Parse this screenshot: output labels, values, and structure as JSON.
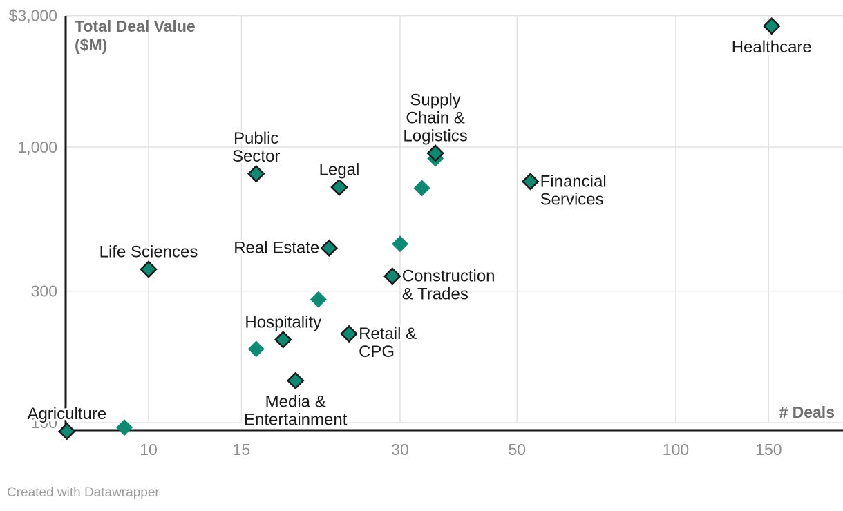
{
  "chart_data": {
    "type": "scatter",
    "title": "",
    "x_axis": {
      "title": "# Deals",
      "scale": "log",
      "min": 7,
      "max": 200,
      "ticks": [
        {
          "value": 10,
          "label": "10"
        },
        {
          "value": 15,
          "label": "15"
        },
        {
          "value": 30,
          "label": "30"
        },
        {
          "value": 50,
          "label": "50"
        },
        {
          "value": 100,
          "label": "100"
        },
        {
          "value": 150,
          "label": "150"
        }
      ]
    },
    "y_axis": {
      "title_lines": [
        "Total Deal Value",
        "($M)"
      ],
      "scale": "log",
      "min": 93,
      "max": 3000,
      "ticks": [
        {
          "value": 3000,
          "label": "$3,000"
        },
        {
          "value": 1000,
          "label": "1,000"
        },
        {
          "value": 300,
          "label": "300"
        },
        {
          "value": 100,
          "label": "100"
        }
      ]
    },
    "grid": true,
    "legend": "none",
    "marker": {
      "shape": "diamond",
      "fill": "#0e8a72",
      "labeled_stroke": "#1a1a1a"
    },
    "series": [
      {
        "name": "Industries",
        "points": [
          {
            "name": "Healthcare",
            "deals": 152,
            "total_deal_value_m": 2750,
            "labeled": true,
            "label_lines": [
              "Healthcare"
            ],
            "label_pos": "bottom"
          },
          {
            "name": "Supply Chain & Logistics",
            "deals": 35,
            "total_deal_value_m": 950,
            "labeled": true,
            "label_lines": [
              "Supply",
              "Chain &",
              "Logistics"
            ],
            "label_pos": "top"
          },
          {
            "name": "Public Sector",
            "deals": 16,
            "total_deal_value_m": 800,
            "labeled": true,
            "label_lines": [
              "Public",
              "Sector"
            ],
            "label_pos": "top"
          },
          {
            "name": "Financial Services",
            "deals": 53,
            "total_deal_value_m": 750,
            "labeled": true,
            "label_lines": [
              "Financial",
              "Services"
            ],
            "label_pos": "right"
          },
          {
            "name": "Legal",
            "deals": 23,
            "total_deal_value_m": 715,
            "labeled": true,
            "label_lines": [
              "Legal"
            ],
            "label_pos": "top"
          },
          {
            "name": "Real Estate",
            "deals": 22,
            "total_deal_value_m": 430,
            "labeled": true,
            "label_lines": [
              "Real Estate"
            ],
            "label_pos": "left"
          },
          {
            "name": "Life Sciences",
            "deals": 10,
            "total_deal_value_m": 360,
            "labeled": true,
            "label_lines": [
              "Life Sciences"
            ],
            "label_pos": "top"
          },
          {
            "name": "Construction & Trades",
            "deals": 29,
            "total_deal_value_m": 340,
            "labeled": true,
            "label_lines": [
              "Construction",
              "& Trades"
            ],
            "label_pos": "right"
          },
          {
            "name": "Retail & CPG",
            "deals": 24,
            "total_deal_value_m": 210,
            "labeled": true,
            "label_lines": [
              "Retail &",
              "CPG"
            ],
            "label_pos": "right"
          },
          {
            "name": "Hospitality",
            "deals": 18,
            "total_deal_value_m": 200,
            "labeled": true,
            "label_lines": [
              "Hospitality"
            ],
            "label_pos": "top"
          },
          {
            "name": "Media & Entertainment",
            "deals": 19,
            "total_deal_value_m": 142,
            "labeled": true,
            "label_lines": [
              "Media &",
              "Entertainment"
            ],
            "label_pos": "bottom"
          },
          {
            "name": "Agriculture",
            "deals": 7,
            "total_deal_value_m": 93,
            "labeled": true,
            "label_lines": [
              "Agriculture"
            ],
            "label_pos": "top"
          },
          {
            "name": "unlabeled-1",
            "deals": 35,
            "total_deal_value_m": 910,
            "labeled": false
          },
          {
            "name": "unlabeled-2",
            "deals": 33,
            "total_deal_value_m": 710,
            "labeled": false
          },
          {
            "name": "unlabeled-3",
            "deals": 30,
            "total_deal_value_m": 445,
            "labeled": false
          },
          {
            "name": "unlabeled-4",
            "deals": 21,
            "total_deal_value_m": 280,
            "labeled": false
          },
          {
            "name": "unlabeled-5",
            "deals": 16,
            "total_deal_value_m": 185,
            "labeled": false
          },
          {
            "name": "unlabeled-6",
            "deals": 9,
            "total_deal_value_m": 96,
            "labeled": false
          }
        ]
      }
    ]
  },
  "colors": {
    "background": "#ffffff",
    "grid": "#e2e2e2",
    "axis": "#161616",
    "tick_text": "#8e8e8e",
    "axis_title_text": "#6f6f6f",
    "label_text": "#1a1a1a",
    "marker_fill": "#0e8a72",
    "marker_stroke": "#1a1a1a",
    "credit_text": "#9b9b9b"
  },
  "footer": {
    "credit": "Created with Datawrapper"
  }
}
